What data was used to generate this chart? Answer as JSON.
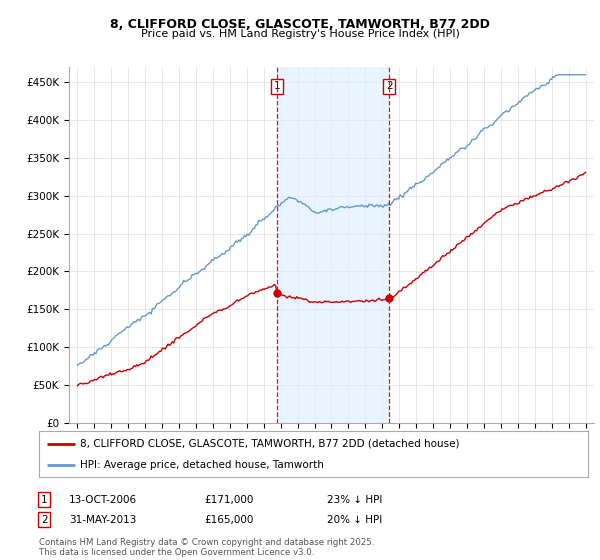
{
  "title_line1": "8, CLIFFORD CLOSE, GLASCOTE, TAMWORTH, B77 2DD",
  "title_line2": "Price paid vs. HM Land Registry's House Price Index (HPI)",
  "ylim": [
    0,
    470000
  ],
  "yticks": [
    0,
    50000,
    100000,
    150000,
    200000,
    250000,
    300000,
    350000,
    400000,
    450000
  ],
  "ytick_labels": [
    "£0",
    "£50K",
    "£100K",
    "£150K",
    "£200K",
    "£250K",
    "£300K",
    "£350K",
    "£400K",
    "£450K"
  ],
  "xstart": 1995,
  "xend": 2025,
  "marker1_x": 2006.78,
  "marker1_label": "1",
  "marker1_date": "13-OCT-2006",
  "marker1_price": "£171,000",
  "marker1_hpi": "23% ↓ HPI",
  "marker2_x": 2013.41,
  "marker2_label": "2",
  "marker2_date": "31-MAY-2013",
  "marker2_price": "£165,000",
  "marker2_hpi": "20% ↓ HPI",
  "line1_color": "#cc0000",
  "line1_label": "8, CLIFFORD CLOSE, GLASCOTE, TAMWORTH, B77 2DD (detached house)",
  "line2_color": "#6699cc",
  "line2_label": "HPI: Average price, detached house, Tamworth",
  "shade_color": "#ddeeff",
  "footer": "Contains HM Land Registry data © Crown copyright and database right 2025.\nThis data is licensed under the Open Government Licence v3.0.",
  "background_color": "#ffffff",
  "grid_color": "#dddddd"
}
